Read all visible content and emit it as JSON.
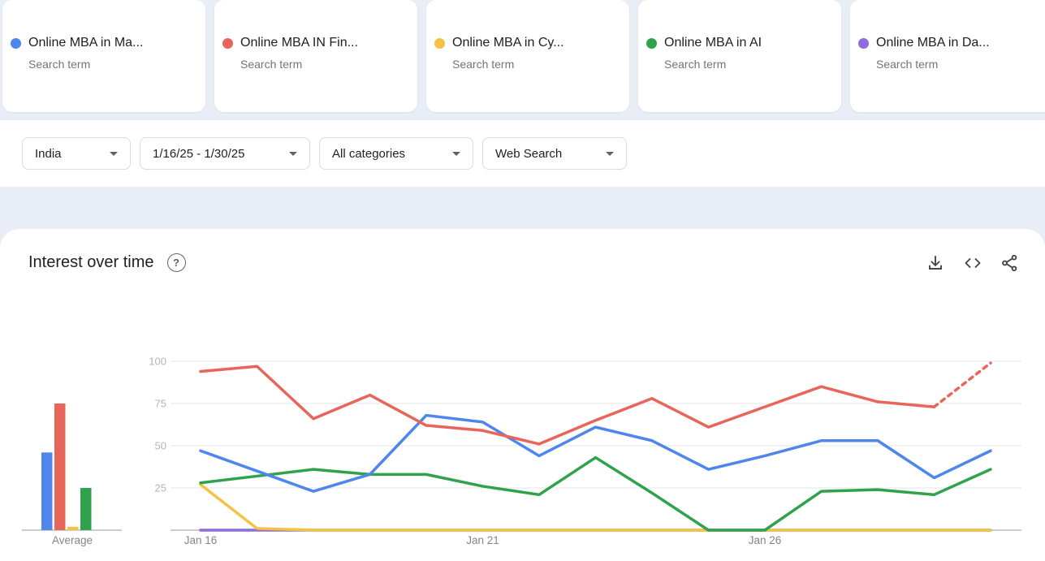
{
  "cards": [
    {
      "label": "Online MBA in Ma...",
      "sublabel": "Search term",
      "color": "#4e86ec"
    },
    {
      "label": "Online MBA IN Fin...",
      "sublabel": "Search term",
      "color": "#e8655a"
    },
    {
      "label": "Online MBA in Cy...",
      "sublabel": "Search term",
      "color": "#f5c344"
    },
    {
      "label": "Online MBA in AI",
      "sublabel": "Search term",
      "color": "#30a24c"
    },
    {
      "label": "Online MBA in Da...",
      "sublabel": "Search term",
      "color": "#8e6ce0"
    }
  ],
  "filters": {
    "geo": "India",
    "time_range": "1/16/25 - 1/30/25",
    "category": "All categories",
    "property": "Web Search"
  },
  "section": {
    "title": "Interest over time",
    "help_glyph": "?",
    "icons": [
      "download-icon",
      "embed-icon",
      "share-icon"
    ]
  },
  "chart_data": {
    "type": "line",
    "title": "Interest over time",
    "x": [
      "Jan 16",
      "Jan 17",
      "Jan 18",
      "Jan 19",
      "Jan 20",
      "Jan 21",
      "Jan 22",
      "Jan 23",
      "Jan 24",
      "Jan 25",
      "Jan 26",
      "Jan 27",
      "Jan 28",
      "Jan 29",
      "Jan 30"
    ],
    "x_ticks": [
      {
        "index": 0,
        "label": "Jan 16"
      },
      {
        "index": 5,
        "label": "Jan 21"
      },
      {
        "index": 10,
        "label": "Jan 26"
      }
    ],
    "ylim": [
      0,
      100
    ],
    "yticks": [
      25,
      50,
      75,
      100
    ],
    "grid": true,
    "average_label": "Average",
    "series": [
      {
        "name": "Online MBA in Ma...",
        "color": "#4e86ec",
        "average": 46,
        "values": [
          47,
          35,
          23,
          33,
          68,
          64,
          44,
          61,
          53,
          36,
          44,
          53,
          53,
          31,
          47
        ],
        "dashed_tail": false
      },
      {
        "name": "Online MBA IN Fin...",
        "color": "#e8655a",
        "average": 75,
        "values": [
          94,
          97,
          66,
          80,
          62,
          59,
          51,
          65,
          78,
          61,
          73,
          85,
          76,
          73,
          99
        ],
        "dashed_tail": true
      },
      {
        "name": "Online MBA in Cy...",
        "color": "#f5c344",
        "average": 2,
        "values": [
          27,
          1,
          0,
          0,
          0,
          0,
          0,
          0,
          0,
          0,
          0,
          0,
          0,
          0,
          0
        ],
        "dashed_tail": false
      },
      {
        "name": "Online MBA in AI",
        "color": "#30a24c",
        "average": 25,
        "values": [
          28,
          32,
          36,
          33,
          33,
          26,
          21,
          43,
          22,
          0,
          0,
          23,
          24,
          21,
          36
        ],
        "dashed_tail": false
      },
      {
        "name": "Online MBA in Da...",
        "color": "#8e6ce0",
        "average": 0,
        "values": [
          0,
          0,
          0,
          0,
          0,
          0,
          0,
          0,
          0,
          0,
          0,
          0,
          0,
          0,
          0
        ],
        "dashed_tail": false
      }
    ]
  }
}
